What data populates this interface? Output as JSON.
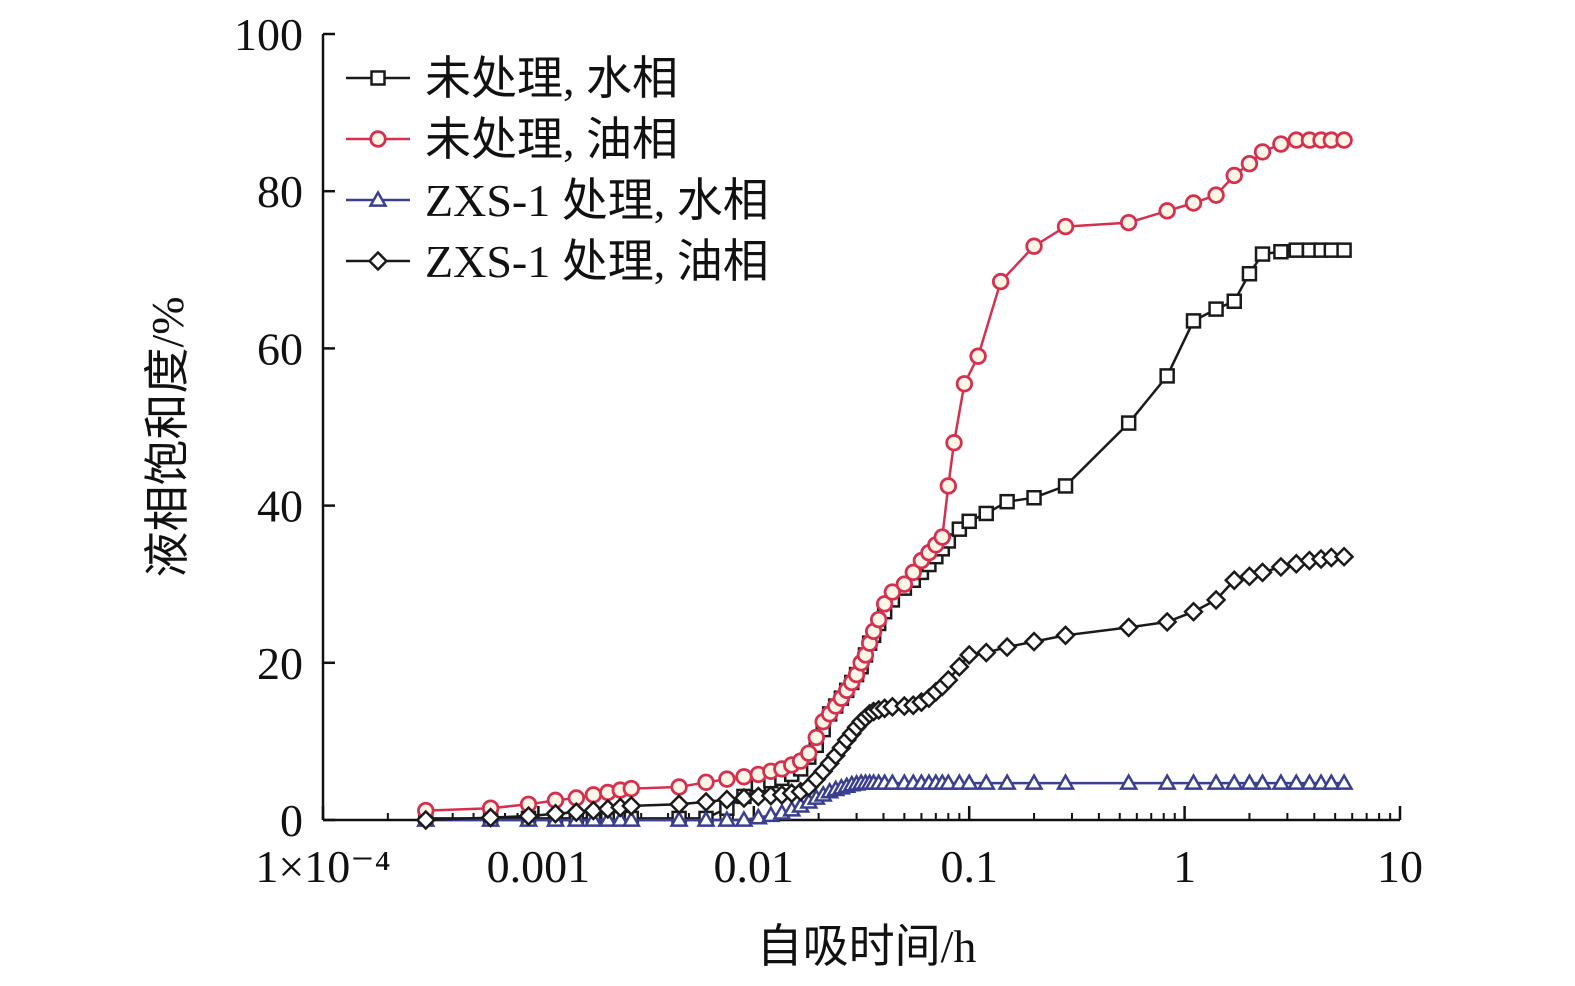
{
  "chart_data": {
    "type": "line",
    "xscale": "log",
    "xlim": [
      0.0001,
      10
    ],
    "ylim": [
      0,
      100
    ],
    "xlabel": "自吸时间/h",
    "ylabel": "液相饱和度/%",
    "x_tick_values": [
      0.0001,
      0.001,
      0.01,
      0.1,
      1,
      10
    ],
    "x_tick_labels": [
      "1×10⁻⁴",
      "0.001",
      "0.01",
      "0.1",
      "1",
      "10"
    ],
    "y_tick_values": [
      0,
      20,
      40,
      60,
      80,
      100
    ],
    "y_tick_labels": [
      "0",
      "20",
      "40",
      "60",
      "80",
      "100"
    ],
    "grid": false,
    "legend_position": "top-left",
    "series": [
      {
        "name": "未处理, 水相",
        "marker": "square",
        "color": "#1a1a1a",
        "x": [
          0.0003,
          0.0006,
          0.0009,
          0.0012,
          0.0015,
          0.0018,
          0.0021,
          0.0024,
          0.0027,
          0.0045,
          0.006,
          0.0075,
          0.009,
          0.0105,
          0.012,
          0.0135,
          0.015,
          0.0165,
          0.018,
          0.0195,
          0.021,
          0.0225,
          0.024,
          0.0255,
          0.027,
          0.0285,
          0.03,
          0.0315,
          0.033,
          0.0345,
          0.036,
          0.038,
          0.0405,
          0.044,
          0.05,
          0.055,
          0.06,
          0.065,
          0.07,
          0.075,
          0.08,
          0.09,
          0.1,
          0.12,
          0.15,
          0.2,
          0.28,
          0.55,
          0.83,
          1.1,
          1.4,
          1.7,
          2.0,
          2.3,
          2.8,
          3.3,
          3.8,
          4.3,
          4.8,
          5.5
        ],
        "y": [
          0.2,
          0.2,
          0.2,
          0.2,
          0.2,
          0.2,
          0.2,
          0.2,
          0.2,
          0.2,
          0.2,
          1.5,
          3.0,
          4.5,
          5.0,
          5.3,
          5.8,
          6.5,
          8.0,
          9.5,
          11.5,
          13.5,
          14.5,
          15.5,
          16.5,
          17.5,
          18.5,
          19.5,
          21.0,
          22.5,
          23.5,
          25.0,
          26.5,
          28.0,
          29.5,
          30.5,
          31.5,
          32.5,
          33.5,
          34.5,
          35.5,
          37.0,
          38.0,
          39.0,
          40.5,
          41.0,
          42.5,
          50.5,
          56.5,
          63.5,
          65.0,
          66.0,
          69.5,
          72.0,
          72.3,
          72.5,
          72.5,
          72.5,
          72.5,
          72.5
        ]
      },
      {
        "name": "未处理, 油相",
        "marker": "circle",
        "color": "#d6304f",
        "x": [
          0.0003,
          0.0006,
          0.0009,
          0.0012,
          0.0015,
          0.0018,
          0.0021,
          0.0024,
          0.0027,
          0.0045,
          0.006,
          0.0075,
          0.009,
          0.0105,
          0.012,
          0.0135,
          0.015,
          0.0165,
          0.018,
          0.0195,
          0.021,
          0.0225,
          0.024,
          0.0255,
          0.027,
          0.0285,
          0.03,
          0.0315,
          0.033,
          0.0345,
          0.036,
          0.038,
          0.0405,
          0.044,
          0.05,
          0.055,
          0.06,
          0.065,
          0.07,
          0.075,
          0.08,
          0.085,
          0.095,
          0.11,
          0.14,
          0.2,
          0.28,
          0.55,
          0.83,
          1.1,
          1.4,
          1.7,
          2.0,
          2.3,
          2.8,
          3.3,
          3.8,
          4.3,
          4.8,
          5.5
        ],
        "y": [
          1.2,
          1.5,
          2.0,
          2.5,
          2.8,
          3.2,
          3.5,
          3.8,
          4.0,
          4.2,
          4.8,
          5.2,
          5.5,
          5.8,
          6.2,
          6.5,
          7.0,
          7.5,
          8.5,
          10.5,
          12.5,
          13.5,
          14.5,
          15.5,
          16.5,
          17.5,
          18.5,
          20.0,
          21.0,
          22.5,
          24.0,
          25.5,
          27.5,
          29.0,
          30.0,
          31.5,
          33.0,
          34.0,
          35.0,
          36.0,
          42.5,
          48.0,
          55.5,
          59.0,
          68.5,
          73.0,
          75.5,
          76.0,
          77.5,
          78.5,
          79.5,
          82.0,
          83.5,
          85.0,
          86.0,
          86.5,
          86.5,
          86.5,
          86.5,
          86.5
        ]
      },
      {
        "name": "ZXS-1 处理, 水相",
        "marker": "triangle",
        "color": "#3b3f8f",
        "x": [
          0.0003,
          0.0006,
          0.0009,
          0.0012,
          0.0015,
          0.0018,
          0.0021,
          0.0024,
          0.0027,
          0.0045,
          0.006,
          0.0075,
          0.009,
          0.0105,
          0.012,
          0.0135,
          0.015,
          0.0165,
          0.018,
          0.0195,
          0.021,
          0.0225,
          0.024,
          0.0255,
          0.027,
          0.0285,
          0.03,
          0.0315,
          0.033,
          0.0345,
          0.036,
          0.038,
          0.0405,
          0.044,
          0.05,
          0.055,
          0.06,
          0.065,
          0.07,
          0.075,
          0.08,
          0.09,
          0.1,
          0.12,
          0.15,
          0.2,
          0.28,
          0.55,
          0.83,
          1.1,
          1.4,
          1.7,
          2.0,
          2.3,
          2.8,
          3.3,
          3.8,
          4.3,
          4.8,
          5.5
        ],
        "y": [
          0.0,
          0.0,
          0.0,
          0.0,
          0.0,
          0.0,
          0.0,
          0.0,
          0.0,
          0.0,
          0.0,
          0.0,
          0.0,
          0.3,
          0.6,
          0.9,
          1.3,
          1.8,
          2.3,
          2.8,
          3.2,
          3.6,
          3.9,
          4.1,
          4.3,
          4.5,
          4.6,
          4.7,
          4.7,
          4.7,
          4.7,
          4.7,
          4.7,
          4.7,
          4.7,
          4.7,
          4.7,
          4.7,
          4.7,
          4.7,
          4.7,
          4.7,
          4.7,
          4.7,
          4.7,
          4.7,
          4.7,
          4.7,
          4.7,
          4.7,
          4.7,
          4.7,
          4.7,
          4.7,
          4.7,
          4.7,
          4.7,
          4.7,
          4.7,
          4.7
        ]
      },
      {
        "name": "ZXS-1 处理, 油相",
        "marker": "diamond",
        "color": "#1a1a1a",
        "x": [
          0.0003,
          0.0006,
          0.0009,
          0.0012,
          0.0015,
          0.0018,
          0.0021,
          0.0024,
          0.0027,
          0.0045,
          0.006,
          0.0075,
          0.009,
          0.0105,
          0.012,
          0.0135,
          0.015,
          0.0165,
          0.018,
          0.0195,
          0.021,
          0.0225,
          0.024,
          0.0255,
          0.027,
          0.0285,
          0.03,
          0.0315,
          0.033,
          0.0345,
          0.036,
          0.038,
          0.0405,
          0.044,
          0.05,
          0.055,
          0.06,
          0.065,
          0.07,
          0.075,
          0.08,
          0.09,
          0.1,
          0.12,
          0.15,
          0.2,
          0.28,
          0.55,
          0.83,
          1.1,
          1.4,
          1.7,
          2.0,
          2.3,
          2.8,
          3.3,
          3.8,
          4.3,
          4.8,
          5.5
        ],
        "y": [
          0.0,
          0.3,
          0.5,
          0.8,
          1.0,
          1.2,
          1.4,
          1.6,
          1.8,
          2.0,
          2.3,
          2.6,
          2.8,
          3.0,
          3.1,
          3.2,
          3.4,
          3.6,
          4.2,
          5.2,
          6.2,
          7.2,
          8.2,
          9.2,
          10.2,
          11.0,
          11.8,
          12.5,
          13.0,
          13.5,
          13.8,
          14.0,
          14.2,
          14.4,
          14.5,
          14.6,
          15.0,
          15.5,
          16.3,
          17.0,
          17.8,
          19.5,
          21.0,
          21.3,
          22.0,
          22.7,
          23.5,
          24.5,
          25.2,
          26.5,
          28.0,
          30.5,
          31.0,
          31.5,
          32.2,
          32.6,
          33.0,
          33.2,
          33.4,
          33.5
        ]
      }
    ]
  }
}
